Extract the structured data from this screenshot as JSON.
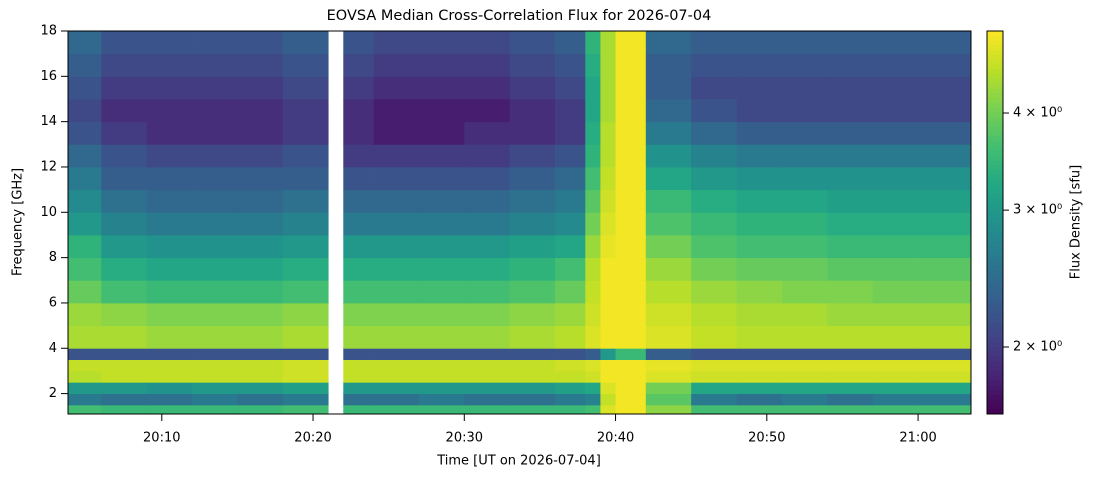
{
  "chart_data": {
    "type": "heatmap",
    "title": "EOVSA Median Cross-Correlation Flux for 2026-07-04",
    "x_label": "Time [UT on 2026-07-04]",
    "y_label": "Frequency [GHz]",
    "colorbar_label": "Flux Density [sfu]",
    "colormap": "viridis",
    "color_scale": "log",
    "xlim": [
      3.8,
      63.5
    ],
    "ylim": [
      1.1,
      18
    ],
    "clim": [
      1.64,
      5.1
    ],
    "xticks": [
      {
        "value": 10,
        "label": "20:10"
      },
      {
        "value": 20,
        "label": "20:20"
      },
      {
        "value": 30,
        "label": "20:30"
      },
      {
        "value": 40,
        "label": "20:40"
      },
      {
        "value": 50,
        "label": "20:50"
      },
      {
        "value": 60,
        "label": "21:00"
      }
    ],
    "yticks": [
      2,
      4,
      6,
      8,
      10,
      12,
      14,
      16,
      18
    ],
    "cticks": [
      {
        "value": 2,
        "label": "2 × 10⁰"
      },
      {
        "value": 3,
        "label": "3 × 10⁰"
      },
      {
        "value": 4,
        "label": "4 × 10⁰"
      }
    ],
    "x_bins": [
      3.8,
      6,
      9,
      12,
      15,
      18,
      21,
      22,
      24,
      27,
      30,
      33,
      36,
      38,
      39,
      40,
      42,
      45,
      48,
      51,
      54,
      57,
      60,
      63.5
    ],
    "y_bins": [
      1.1,
      1.5,
      2,
      2.5,
      3,
      3.5,
      4,
      5,
      6,
      7,
      8,
      9,
      10,
      11,
      12,
      13,
      14,
      15,
      16,
      17,
      18
    ],
    "z": [
      [
        3.6,
        3.5,
        3.5,
        3.5,
        3.5,
        3.6,
        null,
        3.5,
        3.5,
        3.5,
        3.5,
        3.5,
        3.5,
        3.6,
        4.8,
        5,
        4.2,
        3.6,
        3.6,
        3.6,
        3.6,
        3.6,
        3.6
      ],
      [
        2.6,
        2.5,
        2.5,
        2.6,
        2.5,
        2.6,
        null,
        2.5,
        2.5,
        2.6,
        2.5,
        2.5,
        2.6,
        2.7,
        4.6,
        5,
        3.8,
        2.6,
        2.5,
        2.6,
        2.5,
        2.6,
        2.6
      ],
      [
        3.0,
        3.0,
        2.9,
        3.0,
        3.0,
        3.1,
        null,
        3.0,
        3.0,
        3.0,
        3.0,
        3.0,
        3.1,
        3.2,
        4.8,
        5,
        4.0,
        3.2,
        3.2,
        3.2,
        3.2,
        3.2,
        3.2
      ],
      [
        4.5,
        4.6,
        4.6,
        4.6,
        4.6,
        4.7,
        null,
        4.6,
        4.6,
        4.6,
        4.6,
        4.6,
        4.6,
        4.7,
        5,
        5,
        4.8,
        4.7,
        4.7,
        4.7,
        4.7,
        4.7,
        4.7
      ],
      [
        4.6,
        4.6,
        4.6,
        4.6,
        4.6,
        4.7,
        null,
        4.6,
        4.6,
        4.6,
        4.6,
        4.6,
        4.7,
        4.8,
        5,
        5,
        4.9,
        4.8,
        4.8,
        4.8,
        4.8,
        4.8,
        4.8
      ],
      [
        2.2,
        2.2,
        2.2,
        2.2,
        2.2,
        2.2,
        null,
        2.2,
        2.2,
        2.2,
        2.2,
        2.2,
        2.2,
        2.3,
        3.0,
        3.5,
        2.3,
        2.2,
        2.2,
        2.2,
        2.2,
        2.2,
        2.2
      ],
      [
        4.4,
        4.4,
        4.3,
        4.3,
        4.3,
        4.4,
        null,
        4.3,
        4.3,
        4.3,
        4.3,
        4.4,
        4.5,
        4.8,
        5,
        5,
        4.8,
        4.6,
        4.5,
        4.5,
        4.5,
        4.5,
        4.5
      ],
      [
        4.3,
        4.2,
        4.1,
        4.1,
        4.1,
        4.2,
        null,
        4.1,
        4.1,
        4.1,
        4.1,
        4.2,
        4.3,
        4.7,
        5,
        5,
        4.7,
        4.5,
        4.4,
        4.4,
        4.3,
        4.3,
        4.3
      ],
      [
        3.9,
        3.6,
        3.5,
        3.5,
        3.5,
        3.6,
        null,
        3.6,
        3.6,
        3.6,
        3.6,
        3.7,
        3.9,
        4.6,
        5,
        5,
        4.5,
        4.3,
        4.2,
        4.1,
        4.1,
        4.0,
        4.0
      ],
      [
        3.6,
        3.3,
        3.2,
        3.2,
        3.2,
        3.3,
        null,
        3.3,
        3.3,
        3.3,
        3.3,
        3.4,
        3.6,
        4.5,
        5,
        5,
        4.3,
        4.0,
        3.9,
        3.9,
        3.8,
        3.8,
        3.8
      ],
      [
        3.4,
        3.0,
        2.9,
        2.9,
        2.9,
        3.0,
        null,
        3.0,
        3.0,
        3.0,
        3.0,
        3.1,
        3.2,
        4.3,
        4.9,
        5,
        4.0,
        3.7,
        3.6,
        3.6,
        3.5,
        3.5,
        3.5
      ],
      [
        3.0,
        2.7,
        2.6,
        2.6,
        2.6,
        2.7,
        null,
        2.6,
        2.6,
        2.6,
        2.6,
        2.7,
        2.8,
        4.0,
        4.8,
        5,
        3.7,
        3.5,
        3.4,
        3.4,
        3.3,
        3.3,
        3.3
      ],
      [
        2.8,
        2.5,
        2.4,
        2.4,
        2.4,
        2.5,
        null,
        2.4,
        2.4,
        2.4,
        2.4,
        2.5,
        2.6,
        3.8,
        4.7,
        5,
        3.5,
        3.3,
        3.2,
        3.2,
        3.1,
        3.1,
        3.1
      ],
      [
        2.6,
        2.3,
        2.3,
        2.3,
        2.3,
        2.3,
        null,
        2.2,
        2.2,
        2.2,
        2.2,
        2.3,
        2.4,
        3.6,
        4.6,
        5,
        3.2,
        3.0,
        2.9,
        2.9,
        2.9,
        2.9,
        2.9
      ],
      [
        2.4,
        2.2,
        2.1,
        2.1,
        2.1,
        2.2,
        null,
        2.0,
        2.0,
        2.0,
        2.0,
        2.1,
        2.2,
        3.4,
        4.5,
        5,
        2.9,
        2.7,
        2.6,
        2.6,
        2.6,
        2.6,
        2.6
      ],
      [
        2.2,
        2.0,
        1.9,
        1.9,
        1.9,
        2.0,
        null,
        1.9,
        1.8,
        1.8,
        1.9,
        1.9,
        2.0,
        3.3,
        4.5,
        5,
        2.6,
        2.4,
        2.3,
        2.3,
        2.3,
        2.3,
        2.3
      ],
      [
        2.1,
        1.9,
        1.9,
        1.9,
        1.9,
        2.0,
        null,
        1.9,
        1.8,
        1.8,
        1.8,
        1.9,
        2.0,
        3.2,
        4.4,
        5,
        2.4,
        2.2,
        2.1,
        2.1,
        2.1,
        2.1,
        2.1
      ],
      [
        2.2,
        2.0,
        2.0,
        2.0,
        2.0,
        2.1,
        null,
        2.0,
        1.9,
        1.9,
        1.9,
        2.0,
        2.1,
        3.2,
        4.4,
        5,
        2.3,
        2.1,
        2.1,
        2.1,
        2.1,
        2.1,
        2.1
      ],
      [
        2.3,
        2.1,
        2.1,
        2.1,
        2.1,
        2.2,
        null,
        2.1,
        2.0,
        2.0,
        2.0,
        2.1,
        2.2,
        3.3,
        4.4,
        5,
        2.3,
        2.2,
        2.2,
        2.2,
        2.2,
        2.2,
        2.2
      ],
      [
        2.4,
        2.2,
        2.2,
        2.2,
        2.2,
        2.3,
        null,
        2.2,
        2.1,
        2.1,
        2.1,
        2.2,
        2.3,
        3.4,
        4.4,
        5,
        2.4,
        2.3,
        2.3,
        2.3,
        2.3,
        2.3,
        2.3
      ]
    ]
  }
}
